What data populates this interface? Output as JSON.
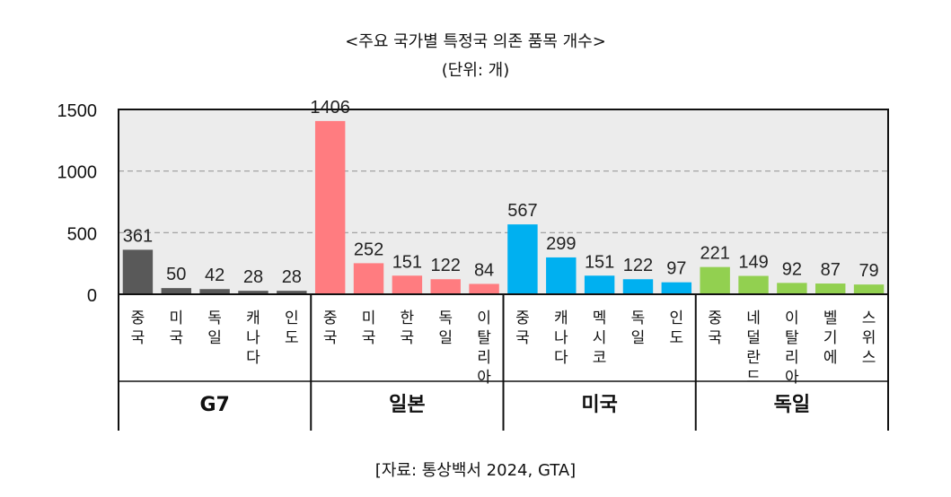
{
  "title": "<주요 국가별 특정국 의존 품목 개수>",
  "subtitle": "(단위: 개)",
  "source": "[자료: 통상백서 2024, GTA]",
  "chart_data": {
    "type": "bar",
    "ylim": [
      0,
      1500
    ],
    "yticks": [
      "0",
      "500",
      "1000",
      "1500"
    ],
    "grid": true,
    "groups": [
      {
        "name": "G7",
        "color": "#595959",
        "categories": [
          "중국",
          "미국",
          "독일",
          "캐나다",
          "인도"
        ],
        "values": [
          361,
          50,
          42,
          28,
          28
        ]
      },
      {
        "name": "일본",
        "color": "#ff7c80",
        "categories": [
          "중국",
          "미국",
          "한국",
          "독일",
          "이탈리아"
        ],
        "values": [
          1406,
          252,
          151,
          122,
          84
        ]
      },
      {
        "name": "미국",
        "color": "#00b0f0",
        "categories": [
          "중국",
          "캐나다",
          "멕시코",
          "독일",
          "인도"
        ],
        "values": [
          567,
          299,
          151,
          122,
          97
        ]
      },
      {
        "name": "독일",
        "color": "#92d050",
        "categories": [
          "중국",
          "네덜란드",
          "이탈리아",
          "벨기에",
          "스위스"
        ],
        "values": [
          221,
          149,
          92,
          87,
          79
        ]
      }
    ]
  }
}
